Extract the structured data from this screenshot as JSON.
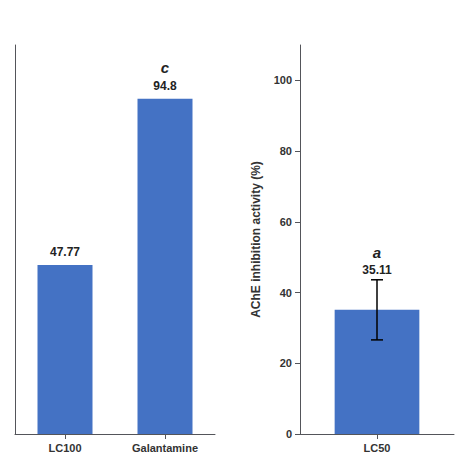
{
  "chart_data": [
    {
      "type": "bar",
      "categories": [
        "LC100",
        "Galantamine"
      ],
      "values": [
        47.77,
        94.8
      ],
      "data_labels": true,
      "annotations": [
        {
          "category": "Galantamine",
          "text": "c"
        }
      ],
      "color": "#4472C4",
      "ylim": [
        0,
        110
      ],
      "tick_labels": "x",
      "grid": false
    },
    {
      "type": "bar",
      "categories": [
        "LC50"
      ],
      "values": [
        35.11
      ],
      "errors": [
        8.5
      ],
      "data_labels": true,
      "annotations": [
        {
          "category": "LC50",
          "text": "a"
        }
      ],
      "color": "#4472C4",
      "ylabel": "AChE inhibition activity (%)",
      "ylim": [
        0,
        110
      ],
      "yticks": [
        0,
        20,
        40,
        60,
        80,
        100
      ],
      "grid": false
    }
  ]
}
